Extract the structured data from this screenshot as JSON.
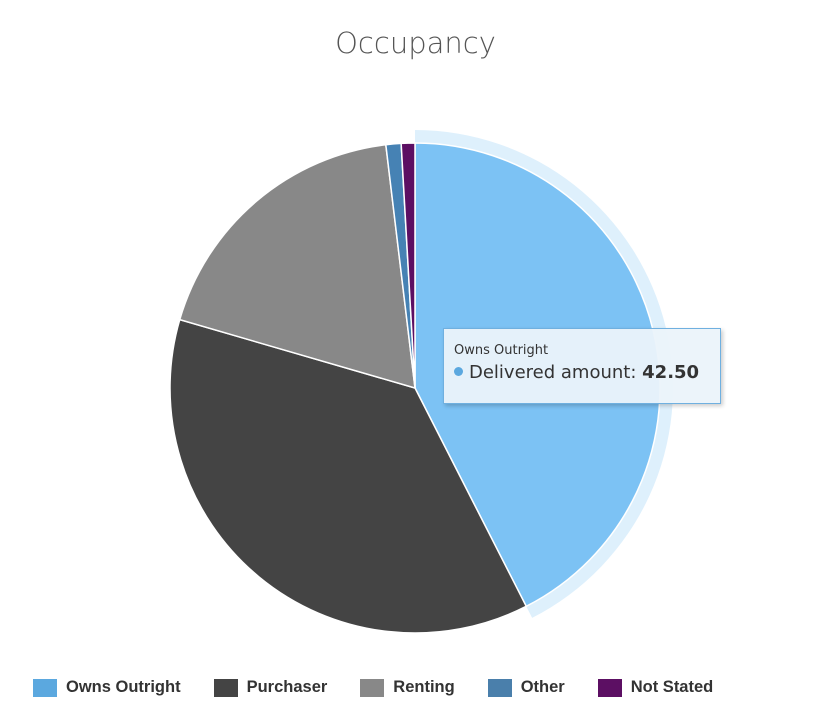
{
  "chart_data": {
    "type": "pie",
    "title": "Occupancy",
    "series_name": "Delivered amount",
    "categories": [
      "Owns Outright",
      "Purchaser",
      "Renting",
      "Other",
      "Not Stated"
    ],
    "values": [
      42.5,
      37.0,
      18.6,
      1.0,
      0.9
    ],
    "colors": [
      "#7cc2f4",
      "#444444",
      "#888888",
      "#4682b4",
      "#5c0f63"
    ],
    "legend_colors": [
      "#5ba8df",
      "#444444",
      "#888888",
      "#4a7fab",
      "#5c0f63"
    ],
    "legend_position": "bottom",
    "highlighted_index": 0
  },
  "tooltip": {
    "name": "Owns Outright",
    "label": "Delivered amount: ",
    "value": "42.50",
    "dot_color": "#5ba8df"
  }
}
